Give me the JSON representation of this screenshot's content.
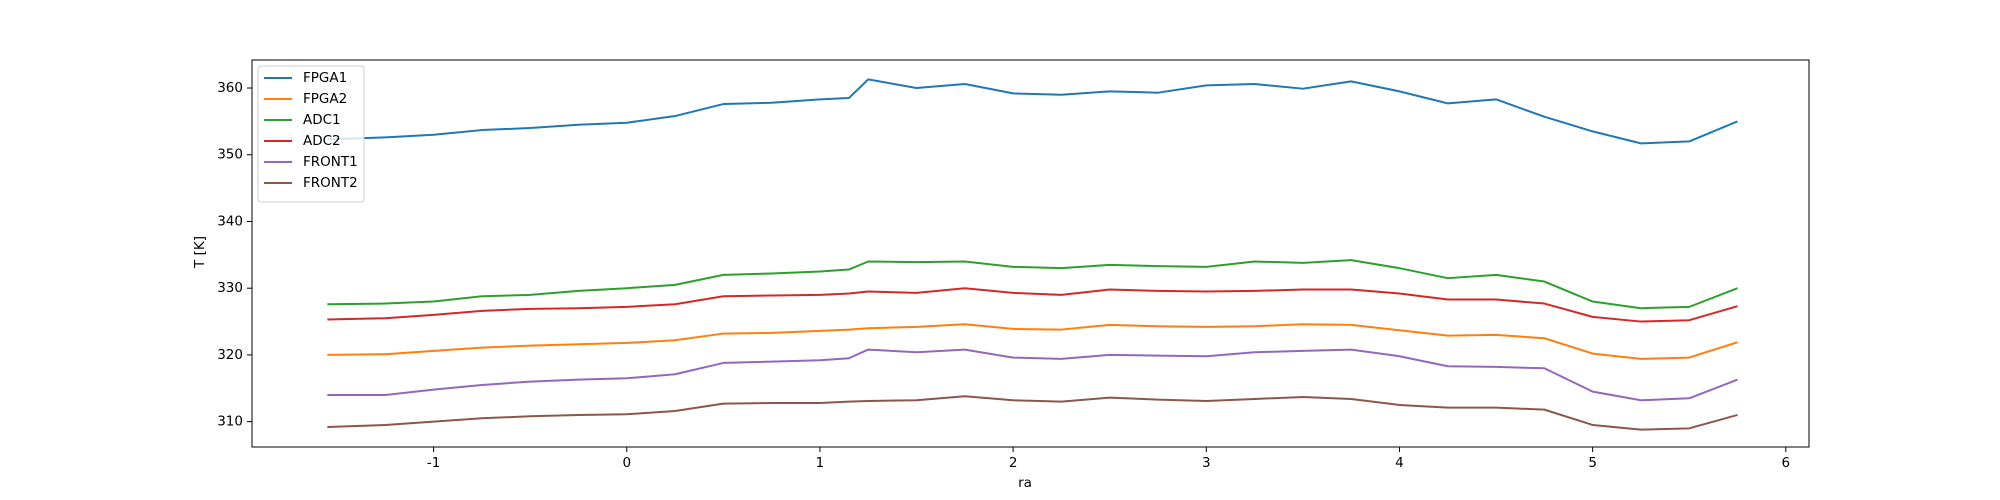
{
  "chart_data": {
    "type": "line",
    "xlabel": "ra",
    "ylabel": "T [K]",
    "x": [
      -1.55,
      -1.25,
      -1,
      -0.75,
      -0.5,
      -0.25,
      0,
      0.25,
      0.5,
      0.75,
      1,
      1.15,
      1.25,
      1.5,
      1.75,
      2,
      2.25,
      2.5,
      2.75,
      3,
      3.25,
      3.5,
      3.75,
      4,
      4.25,
      4.5,
      4.75,
      5,
      5.25,
      5.5,
      5.75
    ],
    "series": [
      {
        "name": "FPGA1",
        "color": "#1f77b4",
        "values": [
          352.3,
          352.6,
          353.0,
          353.7,
          354.0,
          354.5,
          354.8,
          355.8,
          357.6,
          357.8,
          358.3,
          358.5,
          361.3,
          360.0,
          360.6,
          359.2,
          359.0,
          359.5,
          359.3,
          360.4,
          360.6,
          359.9,
          361.0,
          359.5,
          357.7,
          358.3,
          355.7,
          353.5,
          351.7,
          352.0,
          355.0
        ]
      },
      {
        "name": "FPGA2",
        "color": "#ff7f0e",
        "values": [
          320.0,
          320.1,
          320.6,
          321.1,
          321.4,
          321.6,
          321.8,
          322.2,
          323.2,
          323.3,
          323.6,
          323.8,
          324.0,
          324.2,
          324.6,
          323.9,
          323.8,
          324.5,
          324.3,
          324.2,
          324.3,
          324.6,
          324.5,
          323.7,
          322.9,
          323.0,
          322.5,
          320.2,
          319.4,
          319.6,
          321.9
        ]
      },
      {
        "name": "ADC1",
        "color": "#2ca02c",
        "values": [
          327.6,
          327.7,
          328.0,
          328.8,
          329.0,
          329.6,
          330.0,
          330.5,
          332.0,
          332.2,
          332.5,
          332.8,
          334.0,
          333.9,
          334.0,
          333.2,
          333.0,
          333.5,
          333.3,
          333.2,
          334.0,
          333.8,
          334.2,
          333.0,
          331.5,
          332.0,
          331.0,
          328.0,
          327.0,
          327.2,
          330.0
        ]
      },
      {
        "name": "ADC2",
        "color": "#d62728",
        "values": [
          325.3,
          325.5,
          326.0,
          326.6,
          326.9,
          327.0,
          327.2,
          327.6,
          328.8,
          328.9,
          329.0,
          329.2,
          329.5,
          329.3,
          330.0,
          329.3,
          329.0,
          329.8,
          329.6,
          329.5,
          329.6,
          329.8,
          329.8,
          329.2,
          328.3,
          328.3,
          327.7,
          325.7,
          325.0,
          325.2,
          327.3
        ]
      },
      {
        "name": "FRONT1",
        "color": "#9467bd",
        "values": [
          314.0,
          314.0,
          314.8,
          315.5,
          316.0,
          316.3,
          316.5,
          317.1,
          318.8,
          319.0,
          319.2,
          319.5,
          320.8,
          320.4,
          320.8,
          319.6,
          319.4,
          320.0,
          319.9,
          319.8,
          320.4,
          320.6,
          320.8,
          319.8,
          318.3,
          318.2,
          318.0,
          314.5,
          313.2,
          313.5,
          316.3
        ]
      },
      {
        "name": "FRONT2",
        "color": "#8c564b",
        "values": [
          309.2,
          309.5,
          310.0,
          310.5,
          310.8,
          311.0,
          311.1,
          311.6,
          312.7,
          312.8,
          312.8,
          313.0,
          313.1,
          313.2,
          313.8,
          313.2,
          313.0,
          313.6,
          313.3,
          313.1,
          313.4,
          313.7,
          313.4,
          312.5,
          312.1,
          312.1,
          311.8,
          309.5,
          308.8,
          309.0,
          311.0
        ]
      }
    ],
    "xlim": [
      -1.94,
      6.12
    ],
    "xticks": [
      -1,
      0,
      1,
      2,
      3,
      4,
      5,
      6
    ],
    "ylim": [
      306.2,
      364.2
    ],
    "yticks": [
      310,
      320,
      330,
      340,
      350,
      360
    ],
    "legend": "upper left",
    "grid": false
  }
}
